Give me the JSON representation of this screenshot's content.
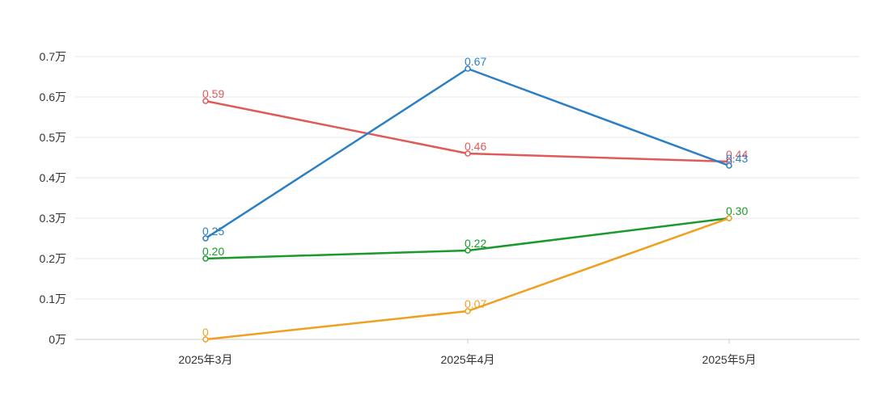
{
  "chart_data": {
    "type": "line",
    "categories": [
      "2025年3月",
      "2025年4月",
      "2025年5月"
    ],
    "y_axis": {
      "min": 0,
      "max": 0.7,
      "step": 0.1,
      "tick_labels": [
        "0万",
        "0.1万",
        "0.2万",
        "0.3万",
        "0.4万",
        "0.5万",
        "0.6万",
        "0.7万"
      ]
    },
    "grid": true,
    "series": [
      {
        "color": "#e05a5a",
        "values": [
          0.59,
          0.46,
          0.44
        ],
        "labels": [
          "0.59",
          "0.46",
          "0.44"
        ]
      },
      {
        "color": "#2a7fc6",
        "values": [
          0.25,
          0.67,
          0.43
        ],
        "labels": [
          "0.25",
          "0.67",
          "0.43"
        ]
      },
      {
        "color": "#1a9a2a",
        "values": [
          0.2,
          0.22,
          0.3
        ],
        "labels": [
          "0.20",
          "0.22",
          "0.30"
        ]
      },
      {
        "color": "#f0a020",
        "values": [
          0,
          0.07,
          0.3
        ],
        "labels": [
          "0",
          "0.07",
          ""
        ]
      }
    ]
  }
}
